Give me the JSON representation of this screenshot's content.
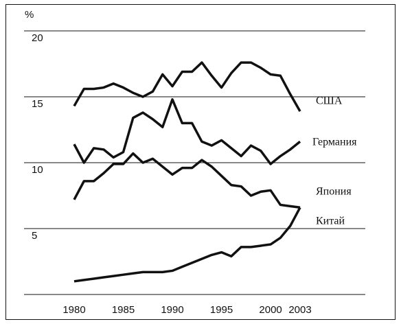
{
  "chart_data": {
    "type": "line",
    "y_label": "%",
    "x": [
      1980,
      1981,
      1982,
      1983,
      1984,
      1985,
      1986,
      1987,
      1988,
      1989,
      1990,
      1991,
      1992,
      1993,
      1994,
      1995,
      1996,
      1997,
      1998,
      1999,
      2000,
      2001,
      2002,
      2003
    ],
    "series": [
      {
        "name": "США",
        "color": "#111111",
        "values": [
          14.3,
          15.6,
          15.6,
          15.7,
          16.0,
          15.7,
          15.3,
          15.0,
          15.4,
          16.7,
          15.8,
          16.9,
          16.9,
          17.6,
          16.6,
          15.7,
          16.8,
          17.6,
          17.6,
          17.2,
          16.7,
          16.6,
          15.2,
          13.9
        ]
      },
      {
        "name": "Германия",
        "color": "#111111",
        "values": [
          11.4,
          10.0,
          11.1,
          11.0,
          10.4,
          10.8,
          13.4,
          13.8,
          13.3,
          12.7,
          14.8,
          13.0,
          13.0,
          11.6,
          11.3,
          11.7,
          11.1,
          10.5,
          11.3,
          10.9,
          9.9,
          10.5,
          11.0,
          11.6
        ]
      },
      {
        "name": "Япония",
        "color": "#111111",
        "values": [
          7.2,
          8.6,
          8.6,
          9.2,
          9.9,
          9.9,
          10.7,
          10.0,
          10.3,
          9.7,
          9.1,
          9.6,
          9.6,
          10.2,
          9.7,
          9.0,
          8.3,
          8.2,
          7.5,
          7.8,
          7.9,
          6.8,
          6.7,
          6.6
        ]
      },
      {
        "name": "Китай",
        "color": "#111111",
        "values": [
          1.0,
          1.1,
          1.2,
          1.3,
          1.4,
          1.5,
          1.6,
          1.7,
          1.7,
          1.7,
          1.8,
          2.1,
          2.4,
          2.7,
          3.0,
          3.2,
          2.9,
          3.6,
          3.6,
          3.7,
          3.8,
          4.3,
          5.2,
          6.6
        ]
      }
    ],
    "xlim": [
      1980,
      2003
    ],
    "xticks": [
      1980,
      1985,
      1990,
      1995,
      2000,
      2003
    ],
    "ylim": [
      0,
      20
    ],
    "yticks": [
      5,
      10,
      15,
      20
    ],
    "grid": true
  }
}
